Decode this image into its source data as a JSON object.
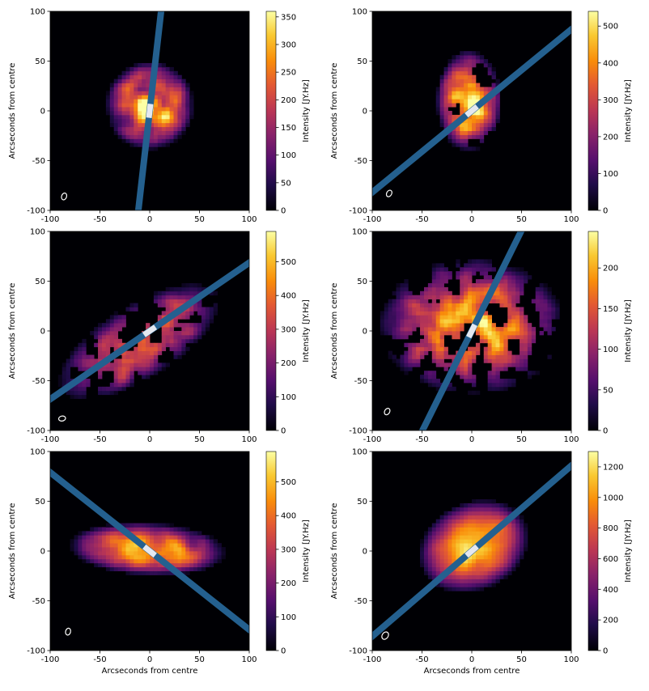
{
  "chart_data": [
    {
      "type": "heatmap",
      "xlabel": "",
      "ylabel": "Arcseconds from centre",
      "xlim": [
        -100,
        100
      ],
      "ylim": [
        -100,
        100
      ],
      "xticks": [
        -100,
        -50,
        0,
        50,
        100
      ],
      "yticks": [
        100,
        50,
        0,
        -50,
        -100
      ],
      "colorbar": {
        "label": "Intensity [JY.Hz]",
        "range": [
          0,
          360
        ],
        "ticks": [
          0,
          50,
          100,
          150,
          200,
          250,
          300,
          350
        ]
      },
      "colormap": "inferno",
      "emission": {
        "cx": 0,
        "cy": 5,
        "rx": 45,
        "ry": 45,
        "angle": 0,
        "peak": 350,
        "clumpiness": 0.7,
        "seed": 11
      },
      "slit": {
        "x1": -12,
        "y1": -105,
        "x2": 12,
        "y2": 105
      },
      "beam": {
        "x": -86,
        "y": -86,
        "rx": 3.5,
        "ry": 2.5,
        "angle": -70
      }
    },
    {
      "type": "heatmap",
      "xlabel": "",
      "ylabel": "Arcseconds from centre",
      "xlim": [
        -100,
        100
      ],
      "ylim": [
        -100,
        100
      ],
      "xticks": [
        -100,
        -50,
        0,
        50,
        100
      ],
      "yticks": [
        100,
        50,
        0,
        -50,
        -100
      ],
      "colorbar": {
        "label": "Intensity [JY.Hz]",
        "range": [
          0,
          540
        ],
        "ticks": [
          0,
          100,
          200,
          300,
          400,
          500
        ]
      },
      "colormap": "inferno",
      "emission": {
        "cx": -3,
        "cy": 10,
        "rx": 33,
        "ry": 52,
        "angle": 0,
        "peak": 520,
        "clumpiness": 0.85,
        "seed": 23
      },
      "slit": {
        "x1": -105,
        "y1": -86,
        "x2": 105,
        "y2": 86
      },
      "beam": {
        "x": -83,
        "y": -83,
        "rx": 3.5,
        "ry": 2.5,
        "angle": -60
      }
    },
    {
      "type": "heatmap",
      "xlabel": "",
      "ylabel": "Arcseconds from centre",
      "xlim": [
        -100,
        100
      ],
      "ylim": [
        -100,
        100
      ],
      "xticks": [
        -100,
        -50,
        0,
        50,
        100
      ],
      "yticks": [
        100,
        50,
        0,
        -50,
        -100
      ],
      "colorbar": {
        "label": "Intensity [JY.Hz]",
        "range": [
          0,
          590
        ],
        "ticks": [
          0,
          100,
          200,
          300,
          400,
          500
        ]
      },
      "colormap": "inferno",
      "emission": {
        "cx": -10,
        "cy": -10,
        "rx": 95,
        "ry": 38,
        "angle": 32,
        "peak": 420,
        "clumpiness": 0.92,
        "seed": 37
      },
      "slit": {
        "x1": -105,
        "y1": -72,
        "x2": 105,
        "y2": 72
      },
      "beam": {
        "x": -88,
        "y": -88,
        "rx": 3.5,
        "ry": 2.5,
        "angle": -10
      }
    },
    {
      "type": "heatmap",
      "xlabel": "",
      "ylabel": "Arcseconds from centre",
      "xlim": [
        -100,
        100
      ],
      "ylim": [
        -100,
        100
      ],
      "xticks": [
        -100,
        -50,
        0,
        50,
        100
      ],
      "yticks": [
        100,
        50,
        0,
        -50,
        -100
      ],
      "colorbar": {
        "label": "Intensity [JY.Hz]",
        "range": [
          0,
          245
        ],
        "ticks": [
          0,
          50,
          100,
          150,
          200
        ]
      },
      "colormap": "inferno",
      "emission": {
        "cx": 0,
        "cy": 5,
        "rx": 95,
        "ry": 70,
        "angle": 0,
        "peak": 200,
        "clumpiness": 0.9,
        "seed": 53
      },
      "slit": {
        "x1": -52,
        "y1": -105,
        "x2": 52,
        "y2": 105
      },
      "beam": {
        "x": -85,
        "y": -81,
        "rx": 3.5,
        "ry": 2.5,
        "angle": -60
      }
    },
    {
      "type": "heatmap",
      "xlabel": "Arcseconds from centre",
      "ylabel": "Arcseconds from centre",
      "xlim": [
        -100,
        100
      ],
      "ylim": [
        -100,
        100
      ],
      "xticks": [
        -100,
        -50,
        0,
        50,
        100
      ],
      "yticks": [
        100,
        50,
        0,
        -50,
        -100
      ],
      "colorbar": {
        "label": "Intensity [JY.Hz]",
        "range": [
          0,
          590
        ],
        "ticks": [
          0,
          100,
          200,
          300,
          400,
          500
        ]
      },
      "colormap": "inferno",
      "emission": {
        "cx": -2,
        "cy": 2,
        "rx": 80,
        "ry": 27,
        "angle": -3,
        "peak": 520,
        "clumpiness": 0.6,
        "seed": 71
      },
      "slit": {
        "x1": -105,
        "y1": 83,
        "x2": 105,
        "y2": -83
      },
      "beam": {
        "x": -82,
        "y": -81,
        "rx": 3.5,
        "ry": 2.5,
        "angle": -75
      }
    },
    {
      "type": "heatmap",
      "xlabel": "Arcseconds from centre",
      "ylabel": "Arcseconds from centre",
      "xlim": [
        -100,
        100
      ],
      "ylim": [
        -100,
        100
      ],
      "xticks": [
        -100,
        -50,
        0,
        50,
        100
      ],
      "yticks": [
        100,
        50,
        0,
        -50,
        -100
      ],
      "colorbar": {
        "label": "Intensity [JY.Hz]",
        "range": [
          0,
          1300
        ],
        "ticks": [
          0,
          200,
          400,
          600,
          800,
          1000,
          1200
        ]
      },
      "colormap": "inferno",
      "emission": {
        "cx": 2,
        "cy": 5,
        "rx": 58,
        "ry": 45,
        "angle": 25,
        "peak": 1250,
        "clumpiness": 0.2,
        "seed": 89
      },
      "slit": {
        "x1": -105,
        "y1": -90,
        "x2": 105,
        "y2": 90
      },
      "beam": {
        "x": -87,
        "y": -85,
        "rx": 4,
        "ry": 3,
        "angle": -55
      }
    }
  ]
}
